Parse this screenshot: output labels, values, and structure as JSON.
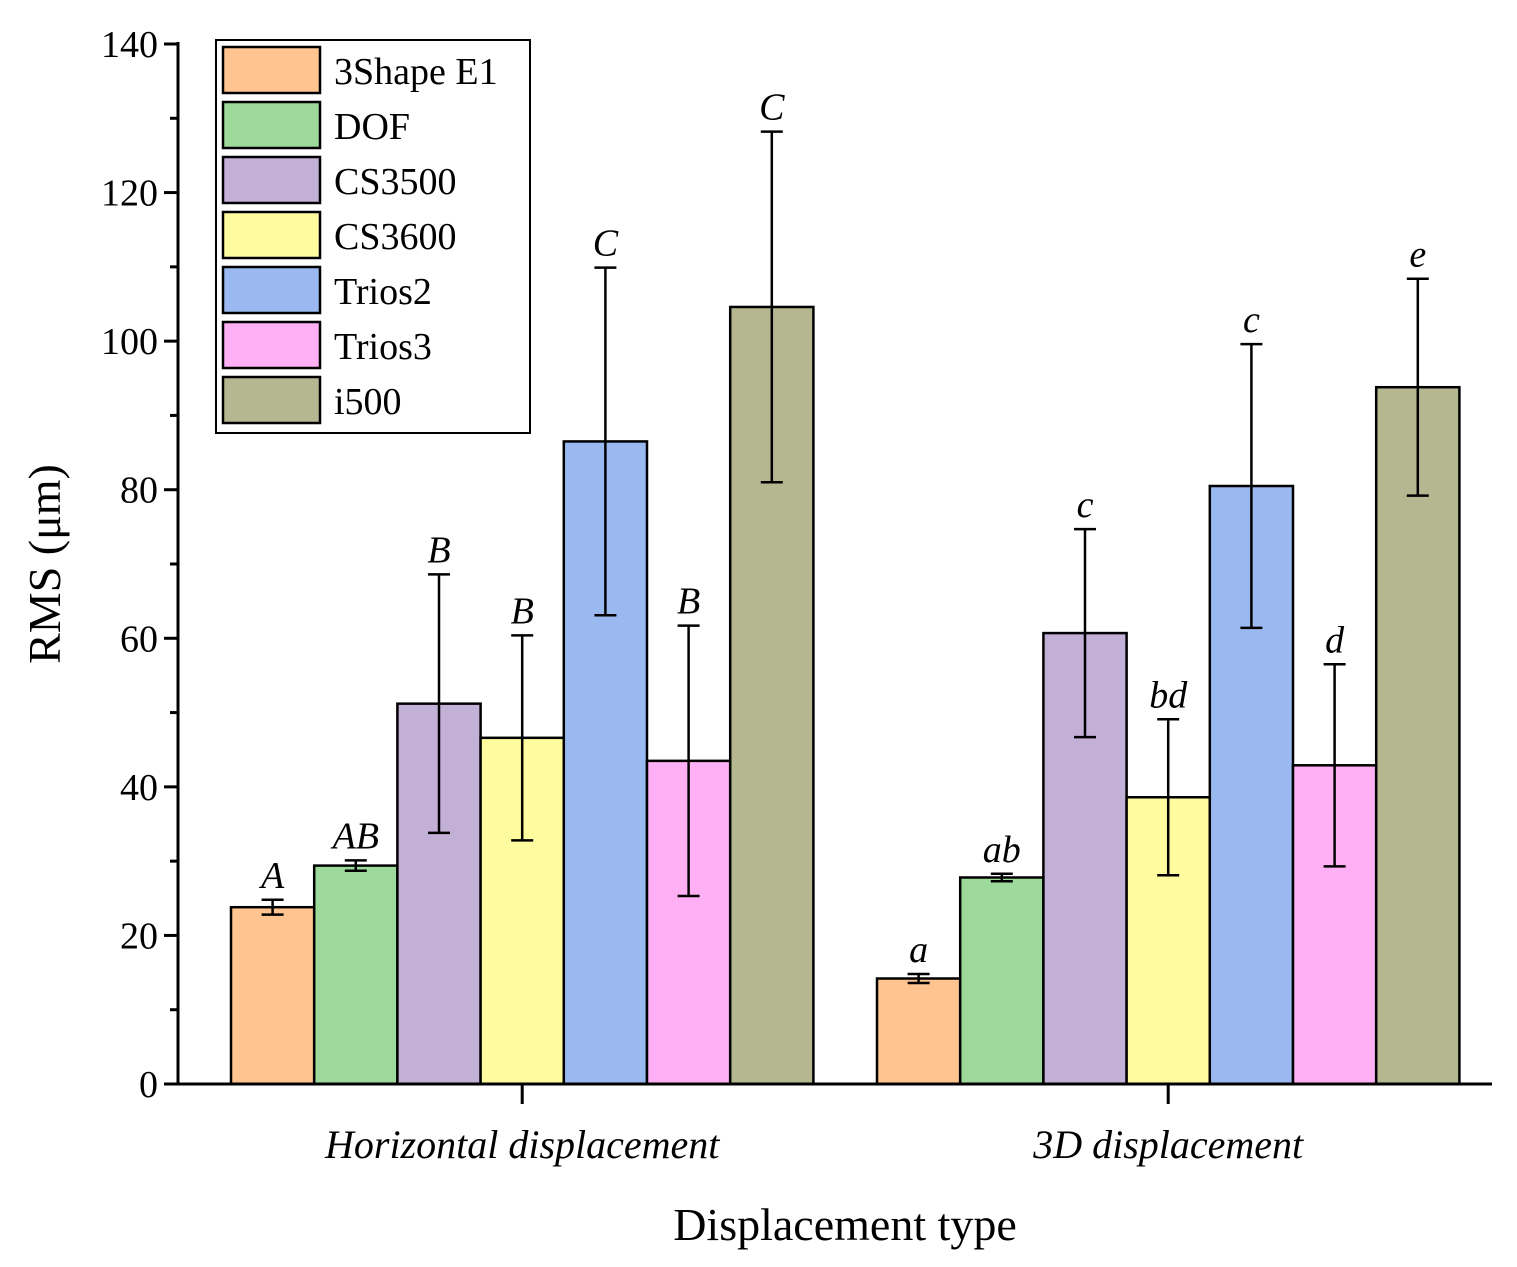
{
  "chart_data": {
    "type": "bar",
    "xlabel": "Displacement type",
    "ylabel": "RMS (μm)",
    "ylim": [
      0,
      140
    ],
    "yticks": [
      0,
      20,
      40,
      60,
      80,
      100,
      120,
      140
    ],
    "grid": false,
    "legend_position": "top-left",
    "categories": [
      "Horizontal displacement",
      "3D displacement"
    ],
    "series": [
      {
        "name": "3Shape E1",
        "color": "#FFC48F",
        "values": [
          23.8,
          14.2
        ],
        "errors": [
          1.0,
          0.6
        ],
        "letters": [
          "A",
          "a"
        ]
      },
      {
        "name": "DOF",
        "color": "#9DD99B",
        "values": [
          29.4,
          27.8
        ],
        "errors": [
          0.7,
          0.5
        ],
        "letters": [
          "AB",
          "ab"
        ]
      },
      {
        "name": "CS3500",
        "color": "#C3B0D6",
        "values": [
          51.2,
          60.7
        ],
        "errors": [
          17.4,
          14.0
        ],
        "letters": [
          "B",
          "c"
        ]
      },
      {
        "name": "CS3600",
        "color": "#FFFCA0",
        "values": [
          46.6,
          38.6
        ],
        "errors": [
          13.8,
          10.5
        ],
        "letters": [
          "B",
          "bd"
        ]
      },
      {
        "name": "Trios2",
        "color": "#9BB9F1",
        "values": [
          86.5,
          80.5
        ],
        "errors": [
          23.4,
          19.1
        ],
        "letters": [
          "C",
          "c"
        ]
      },
      {
        "name": "Trios3",
        "color": "#FFB0F5",
        "values": [
          43.5,
          42.9
        ],
        "errors": [
          18.2,
          13.6
        ],
        "letters": [
          "B",
          "d"
        ]
      },
      {
        "name": "i500",
        "color": "#B4B78F",
        "values": [
          104.6,
          93.8
        ],
        "errors": [
          23.6,
          14.6
        ],
        "letters": [
          "C",
          "e"
        ]
      }
    ]
  }
}
